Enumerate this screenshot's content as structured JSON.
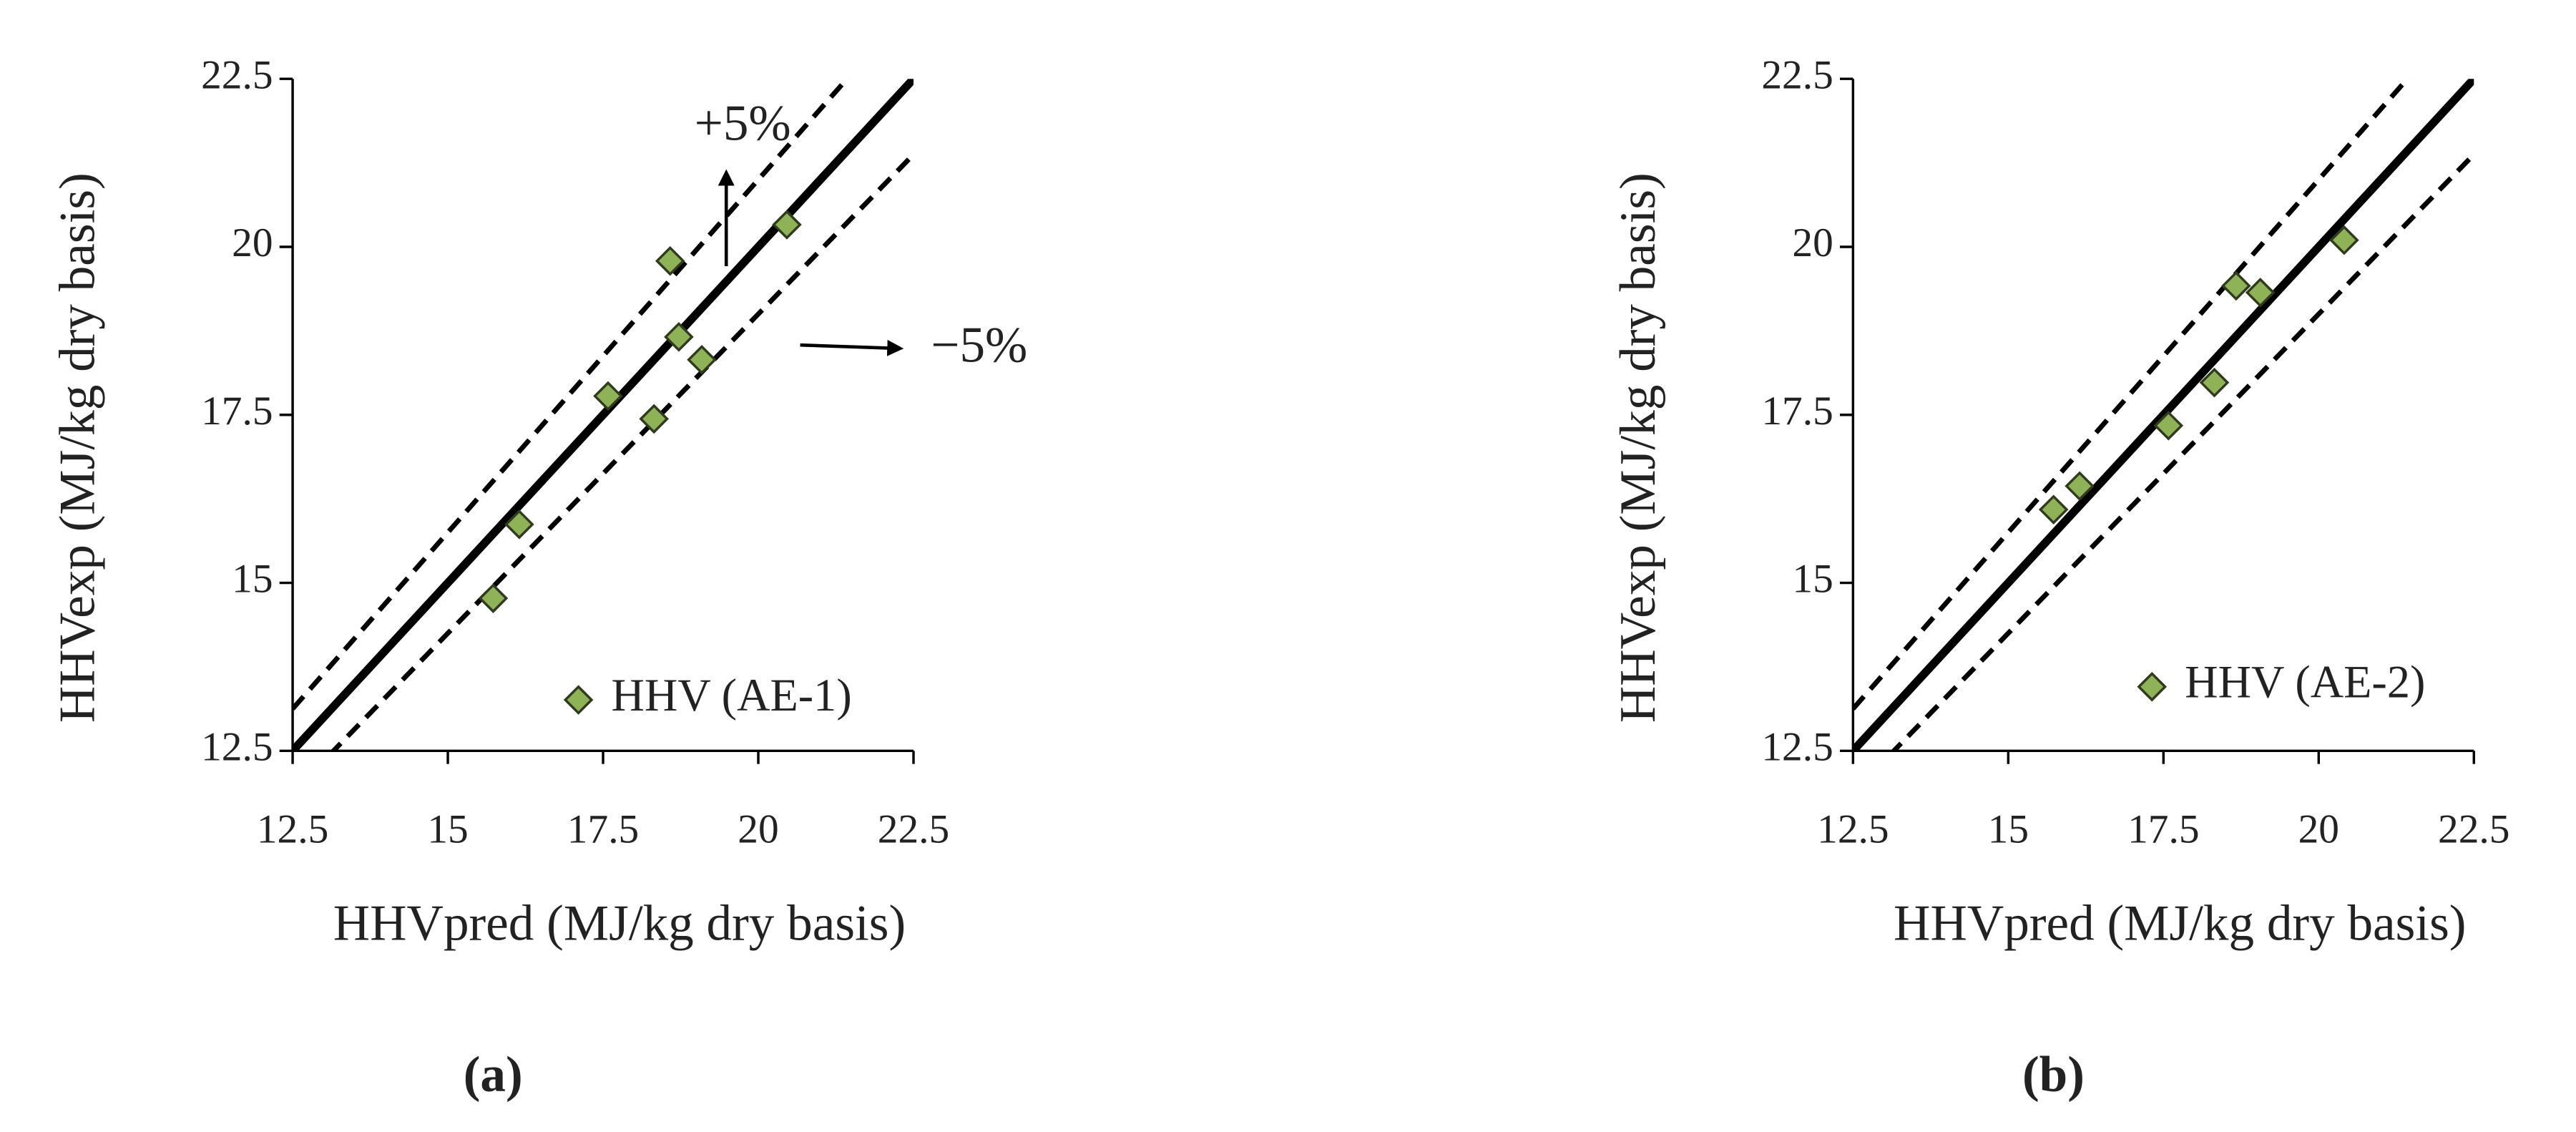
{
  "chart_data": [
    {
      "type": "scatter",
      "caption": "(a)",
      "x_label": "HHVpred  (MJ/kg dry basis)",
      "y_label": "HHVexp  (MJ/kg dry basis)",
      "x": [
        15.73,
        16.15,
        17.58,
        18.32,
        18.58,
        18.72,
        19.09,
        20.46
      ],
      "series": [
        {
          "name": "HHV (AE-1)",
          "color": "#8db356",
          "values": [
            14.77,
            15.87,
            17.78,
            17.44,
            19.79,
            18.66,
            18.32,
            20.33
          ]
        }
      ],
      "xlim": [
        12.5,
        22.5
      ],
      "ylim": [
        12.5,
        22.5
      ],
      "xticks": [
        12.5,
        15,
        17.5,
        20,
        22.5
      ],
      "yticks": [
        12.5,
        15,
        17.5,
        20,
        22.5
      ],
      "reference_lines": [
        {
          "slope": 1,
          "style": "solid"
        },
        {
          "slope": 1.05,
          "style": "dashed"
        },
        {
          "slope": 0.95,
          "style": "dashed"
        }
      ],
      "annotations": [
        "+5%",
        "−5%"
      ],
      "legend": "lower right",
      "grid": false
    },
    {
      "type": "scatter",
      "caption": "(b)",
      "x_label": "HHVpred  (MJ/kg dry basis)",
      "y_label": "HHVexp  (MJ/kg dry basis)",
      "x": [
        15.73,
        16.15,
        17.58,
        18.32,
        18.67,
        19.06,
        20.41
      ],
      "series": [
        {
          "name": "HHV (AE-2)",
          "color": "#8db356",
          "values": [
            16.09,
            16.44,
            17.34,
            17.98,
            19.42,
            19.32,
            20.1
          ]
        }
      ],
      "xlim": [
        12.5,
        22.5
      ],
      "ylim": [
        12.5,
        22.5
      ],
      "xticks": [
        12.5,
        15,
        17.5,
        20,
        22.5
      ],
      "yticks": [
        12.5,
        15,
        17.5,
        20,
        22.5
      ],
      "reference_lines": [
        {
          "slope": 1,
          "style": "solid"
        },
        {
          "slope": 1.05,
          "style": "dashed"
        },
        {
          "slope": 0.95,
          "style": "dashed"
        }
      ],
      "legend": "lower right",
      "grid": false
    }
  ]
}
